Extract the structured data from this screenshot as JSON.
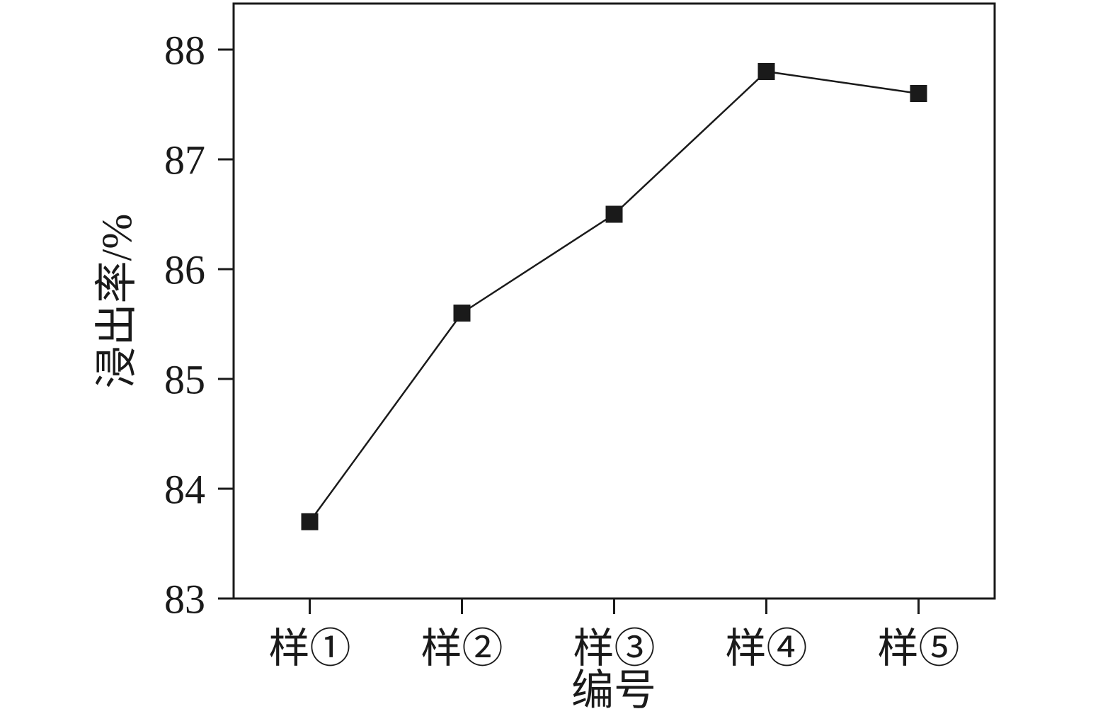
{
  "chart_data": {
    "type": "line",
    "categories": [
      "样①",
      "样②",
      "样③",
      "样④",
      "样⑤"
    ],
    "values": [
      83.7,
      85.6,
      86.5,
      87.8,
      87.6
    ],
    "title": "",
    "xlabel": "编号",
    "ylabel": "浸出率/%",
    "ylim": [
      83,
      88
    ],
    "ytick_step": 1,
    "yticks": [
      83,
      84,
      85,
      86,
      87,
      88
    ],
    "marker": "square",
    "legend": "none",
    "grid": false,
    "line_color": "#1a1a1a",
    "marker_color": "#1a1a1a",
    "axis_color": "#1a1a1a",
    "background": "#ffffff"
  }
}
